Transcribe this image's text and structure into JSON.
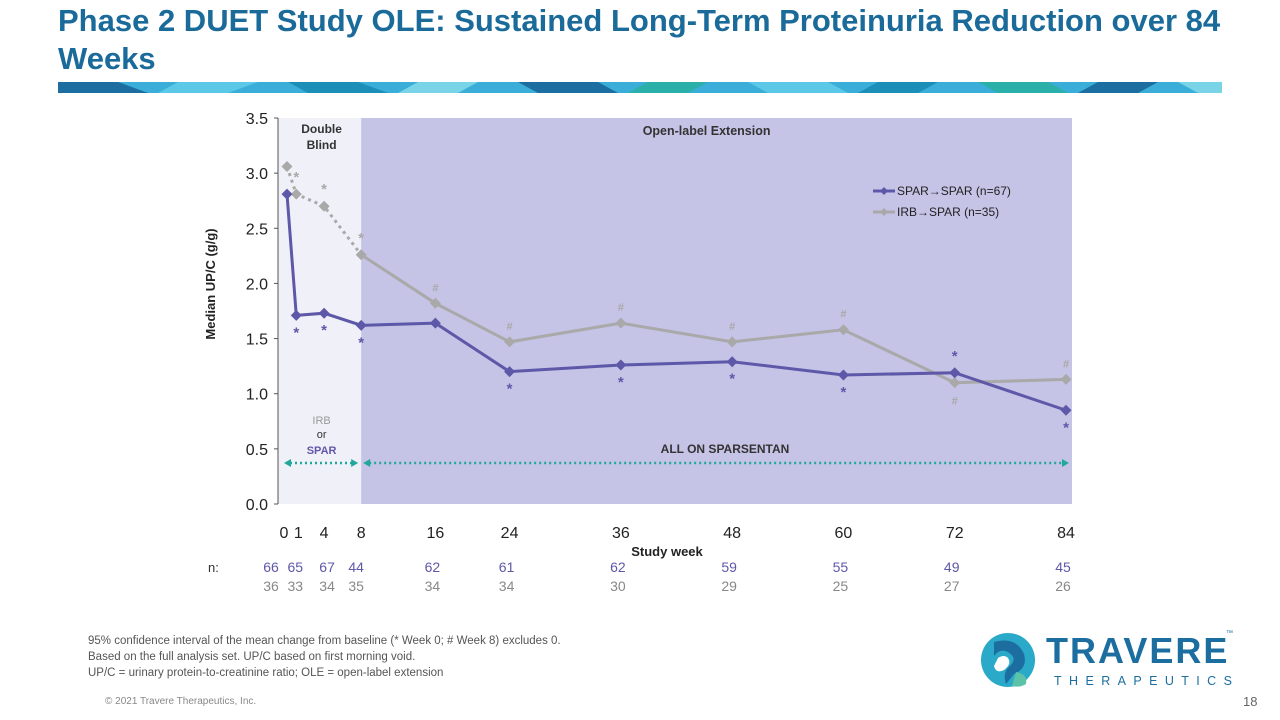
{
  "title": "Phase 2 DUET Study OLE: Sustained Long-Term Proteinuria Reduction over 84 Weeks",
  "colors": {
    "title": "#1a6a9a",
    "spar": "#5e58a8",
    "irb": "#a9a9a9",
    "double_blind_region": "#f0f0f8",
    "ole_region": "#c5c3e6",
    "arrow": "#20a89a"
  },
  "chart_data": {
    "type": "line",
    "xlabel": "Study week",
    "ylabel": "Median UP/C (g/g)",
    "ylim": [
      0,
      3.5
    ],
    "yticks": [
      "0.0",
      "0.5",
      "1.0",
      "1.5",
      "2.0",
      "2.5",
      "3.0",
      "3.5"
    ],
    "xticks": [
      "0",
      "1",
      "4",
      "8",
      "16",
      "24",
      "36",
      "48",
      "60",
      "72",
      "84"
    ],
    "x": [
      0,
      1,
      4,
      8,
      16,
      24,
      36,
      48,
      60,
      72,
      84
    ],
    "series": [
      {
        "name": "SPAR→SPAR (n=67)",
        "key": "spar",
        "values": [
          2.81,
          1.71,
          1.73,
          1.62,
          1.64,
          1.2,
          1.26,
          1.29,
          1.17,
          1.19,
          0.85
        ],
        "markers": [
          "",
          "*",
          "*",
          "*",
          "",
          "*",
          "*",
          "*",
          "*",
          "*",
          "*"
        ],
        "n": [
          "66",
          "65",
          "67",
          "44",
          "62",
          "61",
          "62",
          "59",
          "55",
          "49",
          "45"
        ]
      },
      {
        "name": "IRB→SPAR (n=35)",
        "key": "irb",
        "values": [
          3.06,
          2.81,
          2.7,
          2.26,
          1.82,
          1.47,
          1.64,
          1.47,
          1.58,
          1.1,
          1.13
        ],
        "markers": [
          "",
          "*",
          "*",
          "*",
          "#",
          "#",
          "#",
          "#",
          "#",
          "#",
          "#"
        ],
        "n": [
          "36",
          "33",
          "34",
          "35",
          "34",
          "34",
          "30",
          "29",
          "25",
          "27",
          "26"
        ]
      }
    ],
    "regions": [
      {
        "label": "Double\nBlind",
        "from": 0,
        "to": 8
      },
      {
        "label": "Open-label Extension",
        "from": 8,
        "to": 84
      }
    ],
    "region_notes": {
      "double_blind_irb": "IRB",
      "double_blind_or": "or",
      "double_blind_spar": "SPAR",
      "ole_all": "ALL ON SPARSENTAN"
    },
    "n_label": "n:",
    "legend_position": "top-right",
    "grid": false
  },
  "footnotes": [
    "95% confidence interval of the mean change from baseline (* Week 0; # Week 8) excludes 0.",
    "Based on the full analysis set. UP/C based on first morning void.",
    "UP/C = urinary protein-to-creatinine ratio; OLE = open-label extension"
  ],
  "copyright": "© 2021 Travere Therapeutics, Inc.",
  "page_number": "18",
  "logo": {
    "name": "TRAVERE",
    "sub": "THERAPEUTICS",
    "tm": "™"
  }
}
